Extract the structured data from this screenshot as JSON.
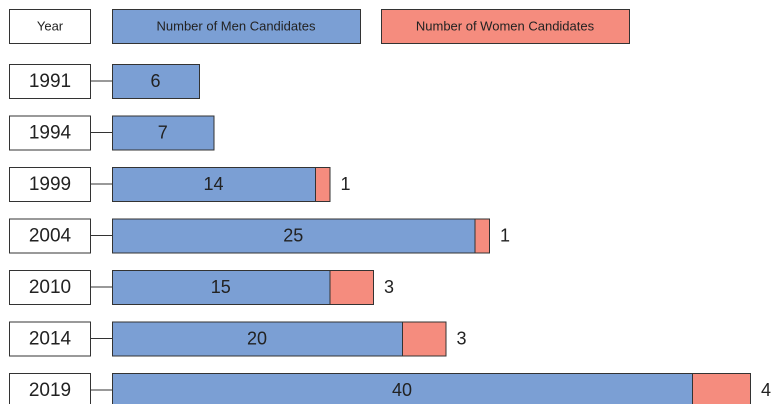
{
  "chart_data": {
    "type": "stacked-bar-horizontal",
    "legend_header": "Year",
    "categories": [
      "1991",
      "1994",
      "1999",
      "2004",
      "2010",
      "2014",
      "2019"
    ],
    "series": [
      {
        "name": "Number of Men Candidates",
        "color": "#7b9fd4",
        "values": [
          6,
          7,
          14,
          25,
          15,
          20,
          40
        ]
      },
      {
        "name": "Number of Women Candidates",
        "color": "#f58c7e",
        "values": [
          null,
          null,
          1,
          1,
          3,
          3,
          4
        ]
      }
    ]
  }
}
